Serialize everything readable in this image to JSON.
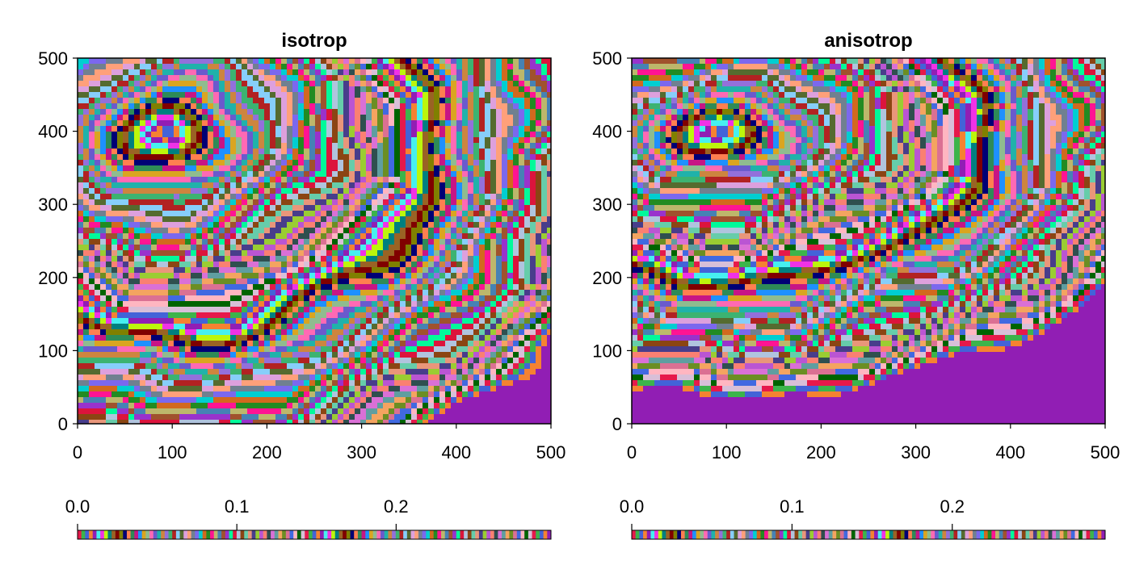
{
  "palette": [
    "#e6194b",
    "#3cb44b",
    "#4363d8",
    "#f58231",
    "#911eb4",
    "#46f0f0",
    "#f032e6",
    "#bcf60c",
    "#008080",
    "#9a6324",
    "#800000",
    "#808000",
    "#000075",
    "#ff7f50",
    "#2e8b57",
    "#c71585",
    "#1e90ff",
    "#daa520",
    "#8fbc8f",
    "#ff69b4",
    "#6a5acd",
    "#20b2aa",
    "#cd853f",
    "#9370db",
    "#3cb371",
    "#b22222",
    "#87cefa",
    "#556b2f",
    "#dda0dd",
    "#ffa07a",
    "#708090",
    "#7b68ee",
    "#00ced1",
    "#d2691e",
    "#228b22",
    "#ff1493",
    "#bdb76b",
    "#4682b4",
    "#a0522d",
    "#9932cc",
    "#00fa9a",
    "#dc143c",
    "#b0c4de",
    "#8b4513",
    "#66cdaa",
    "#e9967a",
    "#483d8b",
    "#9acd32",
    "#ba55d3",
    "#fa8072",
    "#2f4f4f",
    "#da70d6",
    "#5f9ea0",
    "#f4a460",
    "#6b8e23",
    "#db7093",
    "#4169e1",
    "#ffb6c1",
    "#006400",
    "#d8bfd8"
  ],
  "chart_data": [
    {
      "type": "heatmap",
      "title": "isotrop",
      "xlabel": "",
      "ylabel": "",
      "xlim": [
        0,
        500
      ],
      "ylim": [
        0,
        500
      ],
      "x_ticks": [
        0,
        100,
        200,
        300,
        400,
        500
      ],
      "y_ticks": [
        0,
        100,
        200,
        300,
        400,
        500
      ],
      "x_tick_labels": [
        "0",
        "100",
        "200",
        "300",
        "400",
        "500"
      ],
      "y_tick_labels": [
        "0",
        "100",
        "200",
        "300",
        "400",
        "500"
      ],
      "field": {
        "source": [
          100,
          400
        ],
        "anisotropy": 1.0,
        "max_value": 0.2972,
        "contour_levels": 125
      },
      "colorbar": {
        "orientation": "horizontal",
        "position": "bottom",
        "range": [
          0,
          0.2972
        ],
        "ticks": [
          0,
          0.1,
          0.2
        ],
        "tick_labels": [
          "0.0",
          "0.1",
          "0.2"
        ]
      }
    },
    {
      "type": "heatmap",
      "title": "anisotrop",
      "xlabel": "",
      "ylabel": "",
      "xlim": [
        0,
        500
      ],
      "ylim": [
        0,
        500
      ],
      "x_ticks": [
        0,
        100,
        200,
        300,
        400,
        500
      ],
      "y_ticks": [
        0,
        100,
        200,
        300,
        400,
        500
      ],
      "x_tick_labels": [
        "0",
        "100",
        "200",
        "300",
        "400",
        "500"
      ],
      "y_tick_labels": [
        "0",
        "100",
        "200",
        "300",
        "400",
        "500"
      ],
      "field": {
        "source": [
          100,
          400
        ],
        "anisotropy": 1.35,
        "max_value": 0.2954,
        "contour_levels": 125
      },
      "colorbar": {
        "orientation": "horizontal",
        "position": "bottom",
        "range": [
          0,
          0.2954
        ],
        "ticks": [
          0,
          0.1,
          0.2
        ],
        "tick_labels": [
          "0.0",
          "0.1",
          "0.2"
        ]
      }
    }
  ]
}
